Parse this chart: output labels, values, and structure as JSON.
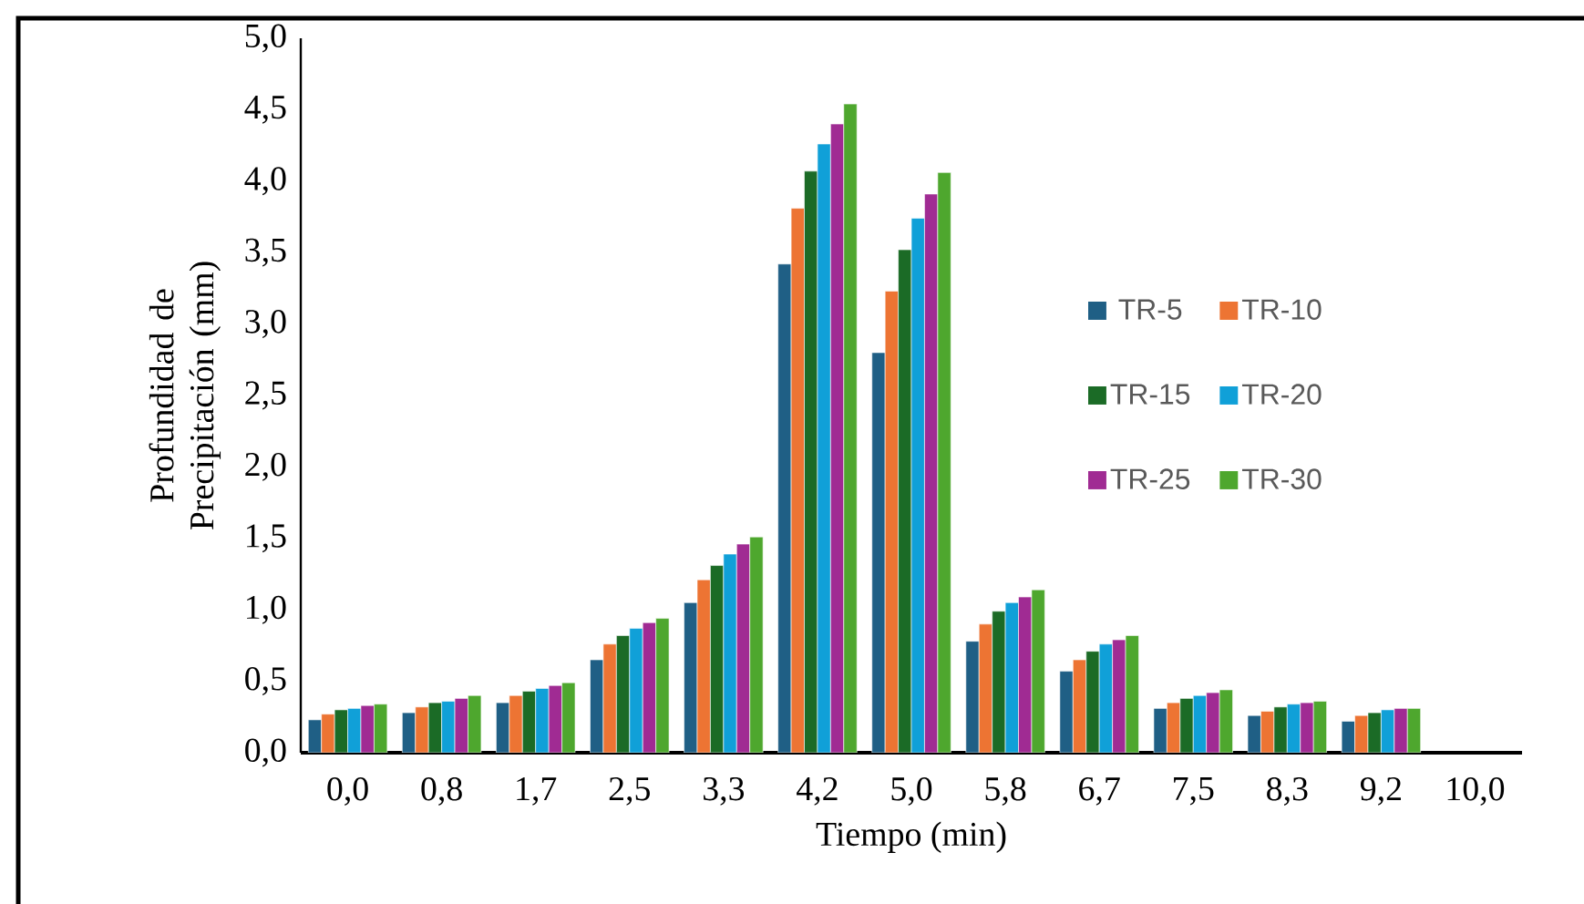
{
  "chart_data": {
    "type": "bar",
    "xlabel": "Tiempo (min)",
    "ylabel": "Profundidad de Precipitación (mm)",
    "categories": [
      "0,0",
      "0,8",
      "1,7",
      "2,5",
      "3,3",
      "4,2",
      "5,0",
      "5,8",
      "6,7",
      "7,5",
      "8,3",
      "9,2",
      "10,0"
    ],
    "series": [
      {
        "name": "TR-5",
        "color": "#1f5f85",
        "values": [
          0.23,
          0.28,
          0.35,
          0.65,
          1.05,
          3.42,
          2.8,
          0.78,
          0.57,
          0.31,
          0.26,
          0.22,
          null
        ]
      },
      {
        "name": "TR-10",
        "color": "#ed7433",
        "values": [
          0.27,
          0.32,
          0.4,
          0.76,
          1.21,
          3.81,
          3.23,
          0.9,
          0.65,
          0.35,
          0.29,
          0.26,
          null
        ]
      },
      {
        "name": "TR-15",
        "color": "#1b6b26",
        "values": [
          0.3,
          0.35,
          0.43,
          0.82,
          1.31,
          4.07,
          3.52,
          0.99,
          0.71,
          0.38,
          0.32,
          0.28,
          null
        ]
      },
      {
        "name": "TR-20",
        "color": "#10a0d8",
        "values": [
          0.31,
          0.36,
          0.45,
          0.87,
          1.39,
          4.26,
          3.74,
          1.05,
          0.76,
          0.4,
          0.34,
          0.3,
          null
        ]
      },
      {
        "name": "TR-25",
        "color": "#a02b93",
        "values": [
          0.33,
          0.38,
          0.47,
          0.91,
          1.46,
          4.4,
          3.91,
          1.09,
          0.79,
          0.42,
          0.35,
          0.31,
          null
        ]
      },
      {
        "name": "TR-30",
        "color": "#4ea72e",
        "values": [
          0.34,
          0.4,
          0.49,
          0.94,
          1.51,
          4.54,
          4.06,
          1.14,
          0.82,
          0.44,
          0.36,
          0.31,
          null
        ]
      }
    ],
    "ylim": [
      0,
      5
    ],
    "yticks": [
      {
        "value": 0,
        "label": "0,0"
      },
      {
        "value": 0.5,
        "label": "0,5"
      },
      {
        "value": 1,
        "label": "1,0"
      },
      {
        "value": 1.5,
        "label": "1,5"
      },
      {
        "value": 2,
        "label": "2,0"
      },
      {
        "value": 2.5,
        "label": "2,5"
      },
      {
        "value": 3,
        "label": "3,0"
      },
      {
        "value": 3.5,
        "label": "3,5"
      },
      {
        "value": 4,
        "label": "4,0"
      },
      {
        "value": 4.5,
        "label": "4,5"
      },
      {
        "value": 5,
        "label": "5,0"
      }
    ],
    "grid": false,
    "legend": "right"
  }
}
